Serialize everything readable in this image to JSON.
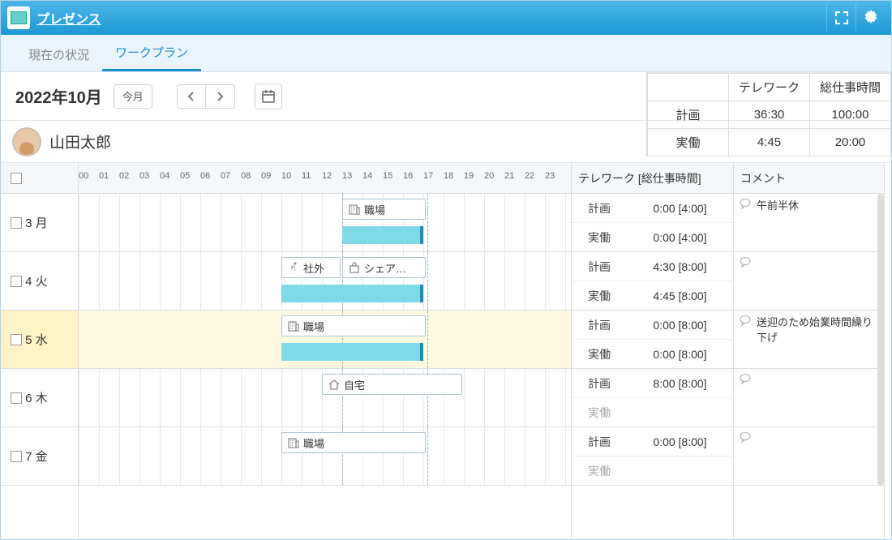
{
  "window": {
    "title": "プレゼンス"
  },
  "tabs": [
    {
      "label": "現在の状況",
      "active": false
    },
    {
      "label": "ワークプラン",
      "active": true
    }
  ],
  "toolbar": {
    "month": "2022年10月",
    "today": "今月"
  },
  "summary": {
    "cols": [
      "",
      "テレワーク",
      "総仕事時間"
    ],
    "rows": [
      {
        "label": "計画",
        "telework": "36:30",
        "total": "100:00"
      },
      {
        "label": "実働",
        "telework": "4:45",
        "total": "20:00"
      }
    ]
  },
  "user": {
    "name": "山田太郎"
  },
  "headers": {
    "telework": "テレワーク [総仕事時間]",
    "comment": "コメント"
  },
  "hours": [
    "00",
    "01",
    "02",
    "03",
    "04",
    "05",
    "06",
    "07",
    "08",
    "09",
    "10",
    "11",
    "12",
    "13",
    "14",
    "15",
    "16",
    "17",
    "18",
    "19",
    "20",
    "21",
    "22",
    "23"
  ],
  "hourWidth": 25,
  "days": [
    {
      "d": "3",
      "w": "月",
      "hl": false,
      "entries": [
        {
          "icon": "building",
          "label": "職場",
          "start": 13,
          "end": 17.2
        }
      ],
      "bars": [
        {
          "start": 13,
          "end": 17
        }
      ],
      "plan": "0:00 [4:00]",
      "actual": "0:00 [4:00]",
      "comment": "午前半休",
      "actualMuted": false
    },
    {
      "d": "4",
      "w": "火",
      "hl": false,
      "entries": [
        {
          "icon": "run",
          "label": "社外",
          "start": 10,
          "end": 13
        },
        {
          "icon": "share",
          "label": "シェア…",
          "start": 13,
          "end": 17.2
        }
      ],
      "bars": [
        {
          "start": 10,
          "end": 17
        }
      ],
      "plan": "4:30 [8:00]",
      "actual": "4:45 [8:00]",
      "comment": "",
      "actualMuted": false
    },
    {
      "d": "5",
      "w": "水",
      "hl": true,
      "entries": [
        {
          "icon": "building",
          "label": "職場",
          "start": 10,
          "end": 17.2
        }
      ],
      "bars": [
        {
          "start": 10,
          "end": 17
        }
      ],
      "plan": "0:00 [8:00]",
      "actual": "0:00 [8:00]",
      "comment": "送迎のため始業時間繰り下げ",
      "actualMuted": false
    },
    {
      "d": "6",
      "w": "木",
      "hl": false,
      "entries": [
        {
          "icon": "home",
          "label": "自宅",
          "start": 12,
          "end": 19
        }
      ],
      "bars": [],
      "plan": "8:00 [8:00]",
      "actual": "",
      "comment": "",
      "actualMuted": true
    },
    {
      "d": "7",
      "w": "金",
      "hl": false,
      "entries": [
        {
          "icon": "building",
          "label": "職場",
          "start": 10,
          "end": 17.2
        }
      ],
      "bars": [],
      "plan": "0:00 [8:00]",
      "actual": "",
      "comment": "",
      "actualMuted": true
    }
  ],
  "rowLabels": {
    "plan": "計画",
    "actual": "実働"
  },
  "colors": {
    "bar": "#7ed9e8",
    "barEdge": "#1b8fbb",
    "highlight": "#fff2c4",
    "accent": "#1a8fd0"
  }
}
